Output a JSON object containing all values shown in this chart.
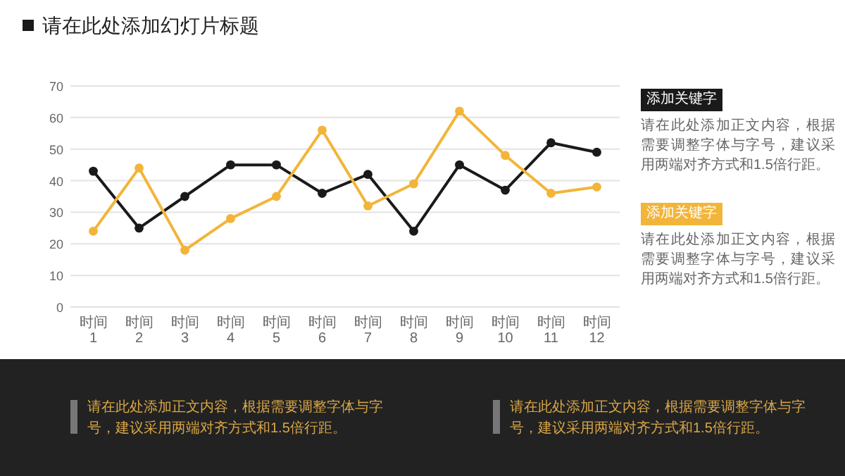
{
  "chart_data": {
    "type": "line",
    "title": "请在此处添加幻灯片标题",
    "categories": [
      "时间 1",
      "时间 2",
      "时间 3",
      "时间 4",
      "时间 5",
      "时间 6",
      "时间 7",
      "时间 8",
      "时间 9",
      "时间 10",
      "时间 11",
      "时间 12"
    ],
    "series": [
      {
        "color": "#1a1a1a",
        "values": [
          43,
          25,
          35,
          45,
          45,
          36,
          42,
          24,
          45,
          37,
          52,
          49
        ]
      },
      {
        "color": "#f2b53a",
        "values": [
          24,
          44,
          18,
          28,
          35,
          56,
          32,
          39,
          62,
          48,
          36,
          38
        ]
      }
    ],
    "ylim": [
      0,
      70
    ],
    "yticks": [
      0,
      10,
      20,
      30,
      40,
      50,
      60,
      70
    ],
    "grid": "y",
    "marker": "circle",
    "line_style": "solid",
    "annotations": [
      "添加关键字",
      "请在此处添加正文内容，根据需要调整字体与字号，建议采用两端对齐方式和1.5倍行距。",
      "添加关键字",
      "请在此处添加正文内容，根据需要调整字体与字号，建议采用两端对齐方式和1.5倍行距。",
      "请在此处添加正文内容，根据需要调整字体与字号，建议采用两端对齐方式和1.5倍行距。",
      "请在此处添加正文内容，根据需要调整字体与字号，建议采用两端对齐方式和1.5倍行距。"
    ]
  }
}
